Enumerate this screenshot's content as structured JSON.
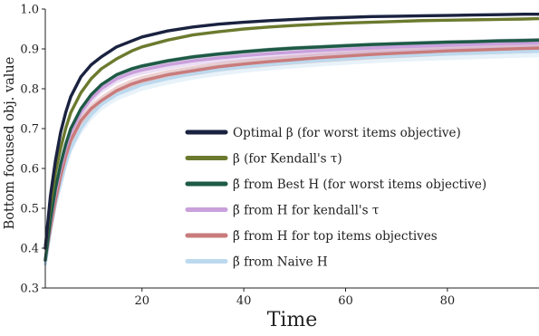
{
  "chart_data": {
    "type": "line",
    "xlabel": "Time",
    "ylabel": "Bottom focused obj. value",
    "xlim": [
      1,
      98
    ],
    "ylim": [
      0.3,
      1.0
    ],
    "xticks": [
      20,
      40,
      60,
      80
    ],
    "xtick_labels": [
      "20",
      "40",
      "60",
      "80"
    ],
    "yticks": [
      0.3,
      0.4,
      0.5,
      0.6,
      0.7,
      0.8,
      0.9,
      1.0
    ],
    "ytick_labels": [
      "0.3",
      "0.4",
      "0.5",
      "0.6",
      "0.7",
      "0.8",
      "0.9",
      "1.0"
    ],
    "grid": false,
    "legend_position": "center-right",
    "x": [
      1,
      2,
      3,
      4,
      5,
      6,
      8,
      10,
      12,
      15,
      18,
      20,
      25,
      30,
      35,
      40,
      45,
      50,
      55,
      60,
      65,
      70,
      75,
      80,
      85,
      90,
      95,
      98
    ],
    "series": [
      {
        "name": "Optimal β (for worst items objective)",
        "color": "#1a2240",
        "values": [
          0.4,
          0.53,
          0.62,
          0.69,
          0.74,
          0.78,
          0.83,
          0.86,
          0.88,
          0.905,
          0.92,
          0.93,
          0.945,
          0.955,
          0.962,
          0.967,
          0.971,
          0.974,
          0.977,
          0.979,
          0.981,
          0.982,
          0.983,
          0.984,
          0.985,
          0.986,
          0.987,
          0.987
        ],
        "band": 0.0
      },
      {
        "name": "β (for Kendall's τ)",
        "color": "#6b7a2e",
        "values": [
          0.4,
          0.51,
          0.59,
          0.65,
          0.7,
          0.74,
          0.79,
          0.825,
          0.85,
          0.875,
          0.895,
          0.905,
          0.922,
          0.935,
          0.943,
          0.95,
          0.955,
          0.959,
          0.962,
          0.965,
          0.967,
          0.969,
          0.971,
          0.972,
          0.973,
          0.974,
          0.975,
          0.976
        ],
        "band": 0.0
      },
      {
        "name": "β̃ from Best H (for worst items objective)",
        "color": "#1e5a46",
        "values": [
          0.37,
          0.47,
          0.55,
          0.61,
          0.66,
          0.7,
          0.75,
          0.785,
          0.81,
          0.835,
          0.85,
          0.857,
          0.87,
          0.88,
          0.887,
          0.893,
          0.898,
          0.902,
          0.905,
          0.908,
          0.911,
          0.913,
          0.915,
          0.917,
          0.918,
          0.92,
          0.921,
          0.922
        ],
        "band": 0.005
      },
      {
        "name": "β̃ from H for kendall's τ",
        "color": "#c9a0dc",
        "values": [
          0.37,
          0.465,
          0.54,
          0.6,
          0.65,
          0.69,
          0.74,
          0.775,
          0.8,
          0.825,
          0.84,
          0.847,
          0.86,
          0.87,
          0.877,
          0.883,
          0.888,
          0.892,
          0.896,
          0.899,
          0.902,
          0.905,
          0.907,
          0.909,
          0.911,
          0.913,
          0.914,
          0.915
        ],
        "band": 0.012
      },
      {
        "name": "β̃ from H for top items objectives",
        "color": "#c97b7b",
        "values": [
          0.37,
          0.45,
          0.52,
          0.58,
          0.63,
          0.67,
          0.72,
          0.75,
          0.77,
          0.795,
          0.812,
          0.82,
          0.835,
          0.845,
          0.855,
          0.862,
          0.868,
          0.873,
          0.878,
          0.882,
          0.886,
          0.889,
          0.892,
          0.895,
          0.897,
          0.899,
          0.901,
          0.902
        ],
        "band": 0.012
      },
      {
        "name": "β̃ from Naive H",
        "color": "#bcd9ee",
        "values": [
          0.36,
          0.44,
          0.51,
          0.56,
          0.61,
          0.65,
          0.7,
          0.735,
          0.76,
          0.785,
          0.8,
          0.81,
          0.825,
          0.838,
          0.847,
          0.855,
          0.861,
          0.866,
          0.871,
          0.875,
          0.879,
          0.882,
          0.885,
          0.887,
          0.889,
          0.891,
          0.893,
          0.894
        ],
        "band": 0.015
      }
    ]
  }
}
